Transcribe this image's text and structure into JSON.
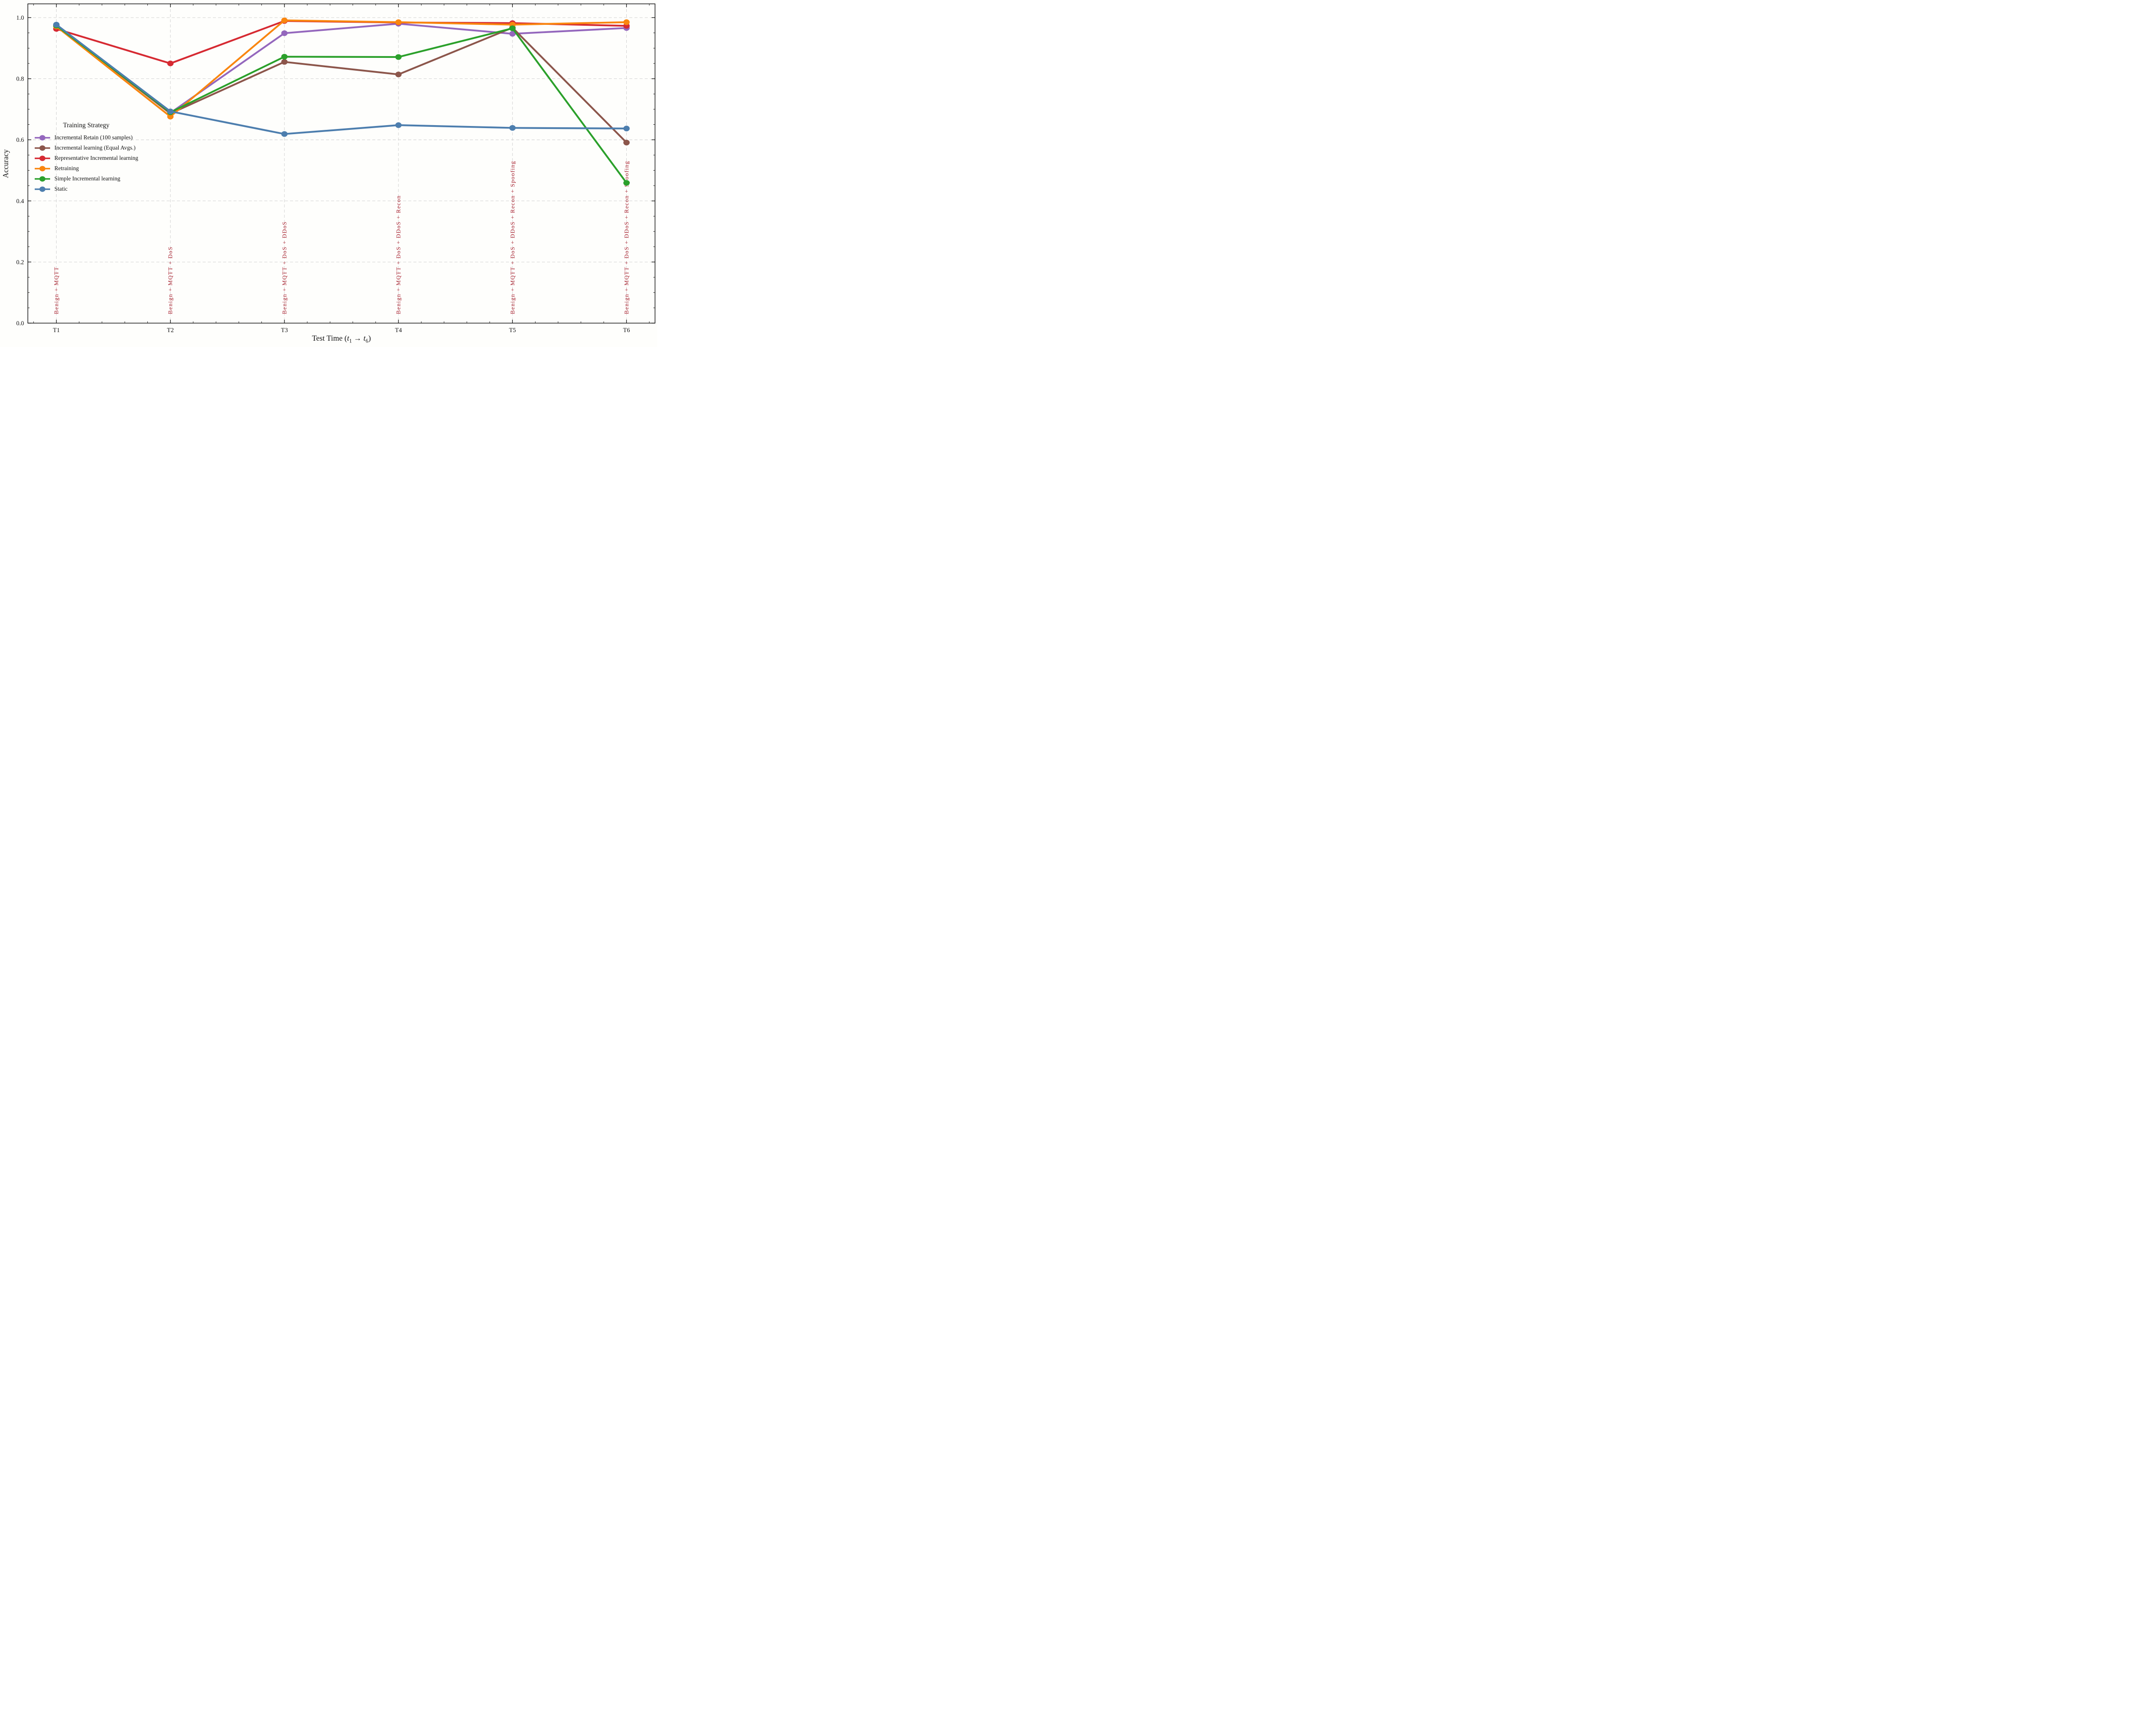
{
  "figure": {
    "background": "#fefefc",
    "grid_color": "#c9c9c9",
    "spine_color": "#000000",
    "annotation_color": "#a81e2c"
  },
  "chart_data": {
    "type": "line",
    "title": "",
    "ylabel": "Accuracy",
    "xlabel": {
      "pre": "Test Time (",
      "var1": "t",
      "sub1": "1",
      "arrow": " → ",
      "var2": "t",
      "sub2": "6",
      "post": ")"
    },
    "categories": [
      "T1",
      "T2",
      "T3",
      "T4",
      "T5",
      "T6"
    ],
    "x_annotations": [
      "Benign + MQTT",
      "Benign + MQTT + DoS",
      "Benign + MQTT + DoS + DDoS",
      "Benign + MQTT + DoS + DDoS + Recon",
      "Benign + MQTT + DoS + DDoS + Recon + Spoofing",
      "Benign + MQTT + DoS + DDoS + Recon + Spoofing"
    ],
    "yticks": [
      0.0,
      0.2,
      0.4,
      0.6,
      0.8,
      1.0
    ],
    "ytick_labels": [
      "0.0",
      "0.2",
      "0.4",
      "0.6",
      "0.8",
      "1.0"
    ],
    "ylim": [
      0,
      1.045
    ],
    "xlim_category_units": [
      -0.25,
      5.25
    ],
    "y_minor_step": 0.05,
    "x_minor_step": 0.2,
    "grid": "major-both-dashed",
    "legend": {
      "title": "Training Strategy",
      "position": "upper-left-inside"
    },
    "series": [
      {
        "name": "Incremental Retain (100 samples)",
        "color": "#9467bd",
        "values": [
          0.975,
          0.688,
          0.949,
          0.98,
          0.947,
          0.966
        ]
      },
      {
        "name": "Incremental learning (Equal Avgs.)",
        "color": "#8c564b",
        "values": [
          0.975,
          0.686,
          0.855,
          0.814,
          0.967,
          0.591
        ]
      },
      {
        "name": "Representative Incremental learning",
        "color": "#d62a32",
        "values": [
          0.963,
          0.85,
          0.989,
          0.984,
          0.982,
          0.973
        ]
      },
      {
        "name": "Retraining",
        "color": "#f9860f",
        "values": [
          0.971,
          0.676,
          0.991,
          0.985,
          0.977,
          0.985
        ]
      },
      {
        "name": "Simple Incremental learning",
        "color": "#2ba02b",
        "values": [
          0.974,
          0.69,
          0.872,
          0.871,
          0.965,
          0.459
        ]
      },
      {
        "name": "Static",
        "color": "#4d7eae",
        "values": [
          0.977,
          0.693,
          0.619,
          0.648,
          0.639,
          0.637
        ]
      }
    ]
  }
}
